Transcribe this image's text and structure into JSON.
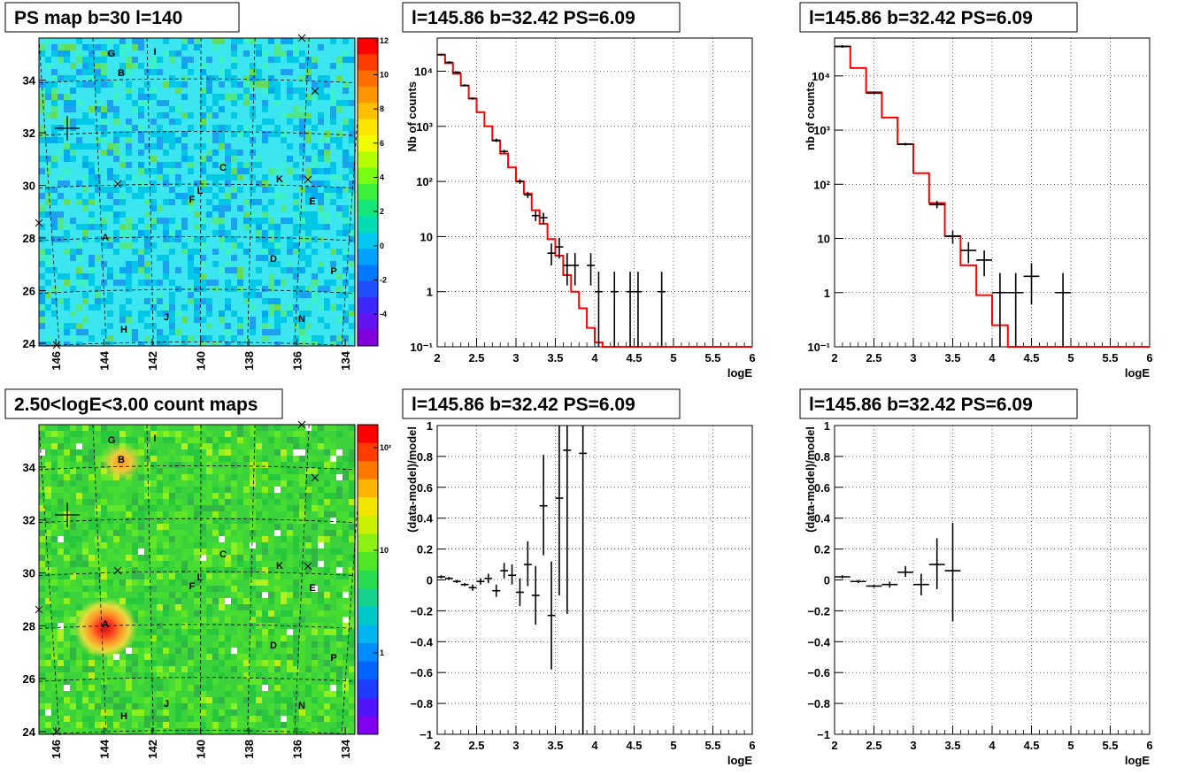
{
  "panels": {
    "ps_map": {
      "title": "PS map b=30 l=140"
    },
    "count_map": {
      "title": "2.50<logE<3.00 count maps"
    },
    "spec1": {
      "title": "l=145.86 b=32.42 PS=6.09",
      "ylabel": "Nb of counts",
      "xlabel": "logE"
    },
    "spec2": {
      "title": "l=145.86 b=32.42 PS=6.09",
      "ylabel": "nb of counts",
      "xlabel": "logE"
    },
    "res1": {
      "title": "l=145.86 b=32.42 PS=6.09",
      "ylabel": "(data-model)/model",
      "xlabel": "logE"
    },
    "res2": {
      "title": "l=145.86 b=32.42 PS=6.09",
      "ylabel": "(data-model)/model",
      "xlabel": "logE"
    }
  },
  "colors": {
    "model": "#ff0000",
    "data": "#000000",
    "grid": "#000000",
    "frame": "#000000"
  },
  "maps": {
    "lon_ticks": [
      "146",
      "144",
      "142",
      "140",
      "138",
      "136",
      "134"
    ],
    "lat_ticks": [
      "24",
      "26",
      "28",
      "30",
      "32",
      "34"
    ],
    "sources": [
      "G",
      "I",
      "B",
      "C",
      "K",
      "L",
      "F",
      "E",
      "A",
      "D",
      "P",
      "J",
      "H",
      "N"
    ],
    "ps_colorbar_labels": [
      "12",
      "10",
      "8",
      "6",
      "4",
      "2",
      "0",
      "-2",
      "-4"
    ],
    "count_colorbar_labels": [
      "10²",
      "10",
      "1"
    ]
  },
  "chart_data": [
    {
      "type": "heatmap",
      "title": "PS map b=30 l=140",
      "x_range": [
        146.7,
        133.6
      ],
      "y_range": [
        23.9,
        35.6
      ],
      "x_ticks": [
        146,
        144,
        142,
        140,
        138,
        136,
        134
      ],
      "y_ticks": [
        24,
        26,
        28,
        30,
        32,
        34
      ],
      "z_range": [
        -5,
        12
      ],
      "sources": [
        "G",
        "I",
        "B",
        "C",
        "K",
        "L",
        "F",
        "E",
        "A",
        "D",
        "P",
        "J",
        "H",
        "N"
      ]
    },
    {
      "type": "heatmap",
      "title": "2.50<logE<3.00 count maps",
      "x_range": [
        146.7,
        133.6
      ],
      "y_range": [
        23.9,
        35.6
      ],
      "x_ticks": [
        146,
        144,
        142,
        140,
        138,
        136,
        134
      ],
      "y_ticks": [
        24,
        26,
        28,
        30,
        32,
        34
      ],
      "z_scale": "log",
      "z_range": [
        0.3,
        200
      ],
      "sources": [
        "G",
        "I",
        "B",
        "C",
        "K",
        "L",
        "F",
        "E",
        "A",
        "D",
        "P",
        "J",
        "H",
        "N"
      ]
    },
    {
      "type": "line",
      "title": "l=145.86 b=32.42 PS=6.09",
      "xlabel": "logE",
      "ylabel": "Nb of counts",
      "xlim": [
        2,
        6
      ],
      "ylim": [
        0.1,
        40000
      ],
      "yscale": "log",
      "grid": true,
      "x_ticks": [
        "2",
        "2.5",
        "3",
        "3.5",
        "4",
        "4.5",
        "5",
        "5.5",
        "6"
      ],
      "y_ticks": [
        {
          "v": 0.1,
          "label": "10⁻¹"
        },
        {
          "v": 1,
          "label": "1"
        },
        {
          "v": 10,
          "label": "10"
        },
        {
          "v": 100,
          "label": "10²"
        },
        {
          "v": 1000,
          "label": "10³"
        },
        {
          "v": 10000,
          "label": "10⁴"
        }
      ],
      "model_step": {
        "edges": [
          2,
          2.1,
          2.2,
          2.3,
          2.4,
          2.5,
          2.6,
          2.7,
          2.8,
          2.9,
          3.0,
          3.1,
          3.2,
          3.3,
          3.4,
          3.5,
          3.6,
          3.7,
          3.8,
          3.9,
          4.0,
          4.1,
          4.2,
          6.0
        ],
        "values": [
          20000,
          14000,
          9000,
          5500,
          3200,
          1800,
          1000,
          550,
          320,
          180,
          100,
          60,
          30,
          17,
          9,
          4.5,
          2.0,
          1.0,
          0.5,
          0.22,
          0.12,
          0.1,
          0.1
        ]
      },
      "data": [
        {
          "x": 2.05,
          "y": 20000,
          "lo": 19000,
          "hi": 21000,
          "xe": 0.05
        },
        {
          "x": 2.15,
          "y": 14500,
          "lo": 13800,
          "hi": 15200,
          "xe": 0.05
        },
        {
          "x": 2.25,
          "y": 9500,
          "lo": 9000,
          "hi": 10000,
          "xe": 0.05
        },
        {
          "x": 2.35,
          "y": 5500,
          "lo": 5300,
          "hi": 5800,
          "xe": 0.05
        },
        {
          "x": 2.45,
          "y": 3200,
          "lo": 3050,
          "hi": 3350,
          "xe": 0.05
        },
        {
          "x": 2.75,
          "y": 560,
          "lo": 520,
          "hi": 600,
          "xe": 0.05
        },
        {
          "x": 2.85,
          "y": 350,
          "lo": 330,
          "hi": 375,
          "xe": 0.05
        },
        {
          "x": 3.05,
          "y": 100,
          "lo": 90,
          "hi": 110,
          "xe": 0.05
        },
        {
          "x": 3.15,
          "y": 57,
          "lo": 50,
          "hi": 65,
          "xe": 0.05
        },
        {
          "x": 3.25,
          "y": 24,
          "lo": 19,
          "hi": 29,
          "xe": 0.05
        },
        {
          "x": 3.35,
          "y": 22,
          "lo": 17,
          "hi": 27,
          "xe": 0.05
        },
        {
          "x": 3.45,
          "y": 5,
          "lo": 3,
          "hi": 7.5,
          "xe": 0.05
        },
        {
          "x": 3.55,
          "y": 6.5,
          "lo": 4,
          "hi": 9.5,
          "xe": 0.05
        },
        {
          "x": 3.65,
          "y": 3,
          "lo": 1.3,
          "hi": 5,
          "xe": 0.05
        },
        {
          "x": 3.75,
          "y": 3,
          "lo": 1.3,
          "hi": 5,
          "xe": 0.05
        },
        {
          "x": 3.95,
          "y": 3,
          "lo": 1.3,
          "hi": 5,
          "xe": 0.05
        },
        {
          "x": 4.05,
          "y": 1,
          "lo": 0.1,
          "hi": 2.3,
          "xe": 0.05
        },
        {
          "x": 4.25,
          "y": 1,
          "lo": 0.1,
          "hi": 2.3,
          "xe": 0.05
        },
        {
          "x": 4.45,
          "y": 1,
          "lo": 0.1,
          "hi": 2.3,
          "xe": 0.05
        },
        {
          "x": 4.55,
          "y": 1,
          "lo": 0.1,
          "hi": 2.3,
          "xe": 0.05
        },
        {
          "x": 4.85,
          "y": 1,
          "lo": 0.1,
          "hi": 2.3,
          "xe": 0.05
        }
      ]
    },
    {
      "type": "line",
      "title": "l=145.86 b=32.42 PS=6.09",
      "xlabel": "logE",
      "ylabel": "nb of counts",
      "xlim": [
        2,
        6
      ],
      "ylim": [
        0.1,
        50000
      ],
      "yscale": "log",
      "grid": true,
      "x_ticks": [
        "2",
        "2.5",
        "3",
        "3.5",
        "4",
        "4.5",
        "5",
        "5.5",
        "6"
      ],
      "y_ticks": [
        {
          "v": 0.1,
          "label": "10⁻¹"
        },
        {
          "v": 1,
          "label": "1"
        },
        {
          "v": 10,
          "label": "10"
        },
        {
          "v": 100,
          "label": "10²"
        },
        {
          "v": 1000,
          "label": "10³"
        },
        {
          "v": 10000,
          "label": "10⁴"
        }
      ],
      "model_step": {
        "edges": [
          2,
          2.2,
          2.4,
          2.6,
          2.8,
          3.0,
          3.2,
          3.4,
          3.6,
          3.8,
          4.0,
          4.2,
          6.0
        ],
        "values": [
          35000,
          14000,
          5000,
          1700,
          550,
          160,
          45,
          11,
          3.2,
          0.9,
          0.25,
          0.1
        ]
      },
      "data": [
        {
          "x": 2.1,
          "y": 35000,
          "lo": 33000,
          "hi": 37000,
          "xe": 0.1
        },
        {
          "x": 2.5,
          "y": 4800,
          "lo": 4600,
          "hi": 5100,
          "xe": 0.1
        },
        {
          "x": 2.9,
          "y": 550,
          "lo": 520,
          "hi": 580,
          "xe": 0.1
        },
        {
          "x": 3.3,
          "y": 42,
          "lo": 36,
          "hi": 49,
          "xe": 0.1
        },
        {
          "x": 3.5,
          "y": 11,
          "lo": 8,
          "hi": 14,
          "xe": 0.1
        },
        {
          "x": 3.7,
          "y": 6,
          "lo": 3.5,
          "hi": 8.5,
          "xe": 0.1
        },
        {
          "x": 3.9,
          "y": 4,
          "lo": 2,
          "hi": 6,
          "xe": 0.1
        },
        {
          "x": 4.1,
          "y": 1,
          "lo": 0.1,
          "hi": 2.3,
          "xe": 0.1
        },
        {
          "x": 4.3,
          "y": 1,
          "lo": 0.1,
          "hi": 2.3,
          "xe": 0.1
        },
        {
          "x": 4.5,
          "y": 2,
          "lo": 0.6,
          "hi": 3.5,
          "xe": 0.1
        },
        {
          "x": 4.9,
          "y": 1,
          "lo": 0.1,
          "hi": 2.3,
          "xe": 0.1
        }
      ]
    },
    {
      "type": "scatter",
      "title": "l=145.86 b=32.42 PS=6.09",
      "xlabel": "logE",
      "ylabel": "(data-model)/model",
      "xlim": [
        2,
        6
      ],
      "ylim": [
        -1,
        1
      ],
      "grid": true,
      "x_ticks": [
        "2",
        "2.5",
        "3",
        "3.5",
        "4",
        "4.5",
        "5",
        "5.5",
        "6"
      ],
      "y_ticks": [
        {
          "v": -1,
          "label": "−1"
        },
        {
          "v": -0.8,
          "label": "−0.8"
        },
        {
          "v": -0.6,
          "label": "−0.6"
        },
        {
          "v": -0.4,
          "label": "−0.4"
        },
        {
          "v": -0.2,
          "label": "−0.2"
        },
        {
          "v": 0,
          "label": "0"
        },
        {
          "v": 0.2,
          "label": "0.2"
        },
        {
          "v": 0.4,
          "label": "0.4"
        },
        {
          "v": 0.6,
          "label": "0.6"
        },
        {
          "v": 0.8,
          "label": "0.8"
        },
        {
          "v": 1,
          "label": "1"
        }
      ],
      "data": [
        {
          "x": 2.05,
          "y": 0.02,
          "lo": 0.01,
          "hi": 0.03,
          "xe": 0.05
        },
        {
          "x": 2.15,
          "y": 0.01,
          "lo": 0.0,
          "hi": 0.02,
          "xe": 0.05
        },
        {
          "x": 2.25,
          "y": -0.01,
          "lo": -0.02,
          "hi": 0.0,
          "xe": 0.05
        },
        {
          "x": 2.35,
          "y": -0.03,
          "lo": -0.04,
          "hi": -0.02,
          "xe": 0.05
        },
        {
          "x": 2.45,
          "y": -0.05,
          "lo": -0.07,
          "hi": -0.03,
          "xe": 0.05
        },
        {
          "x": 2.55,
          "y": -0.01,
          "lo": -0.03,
          "hi": 0.01,
          "xe": 0.05
        },
        {
          "x": 2.65,
          "y": 0.01,
          "lo": -0.02,
          "hi": 0.04,
          "xe": 0.05
        },
        {
          "x": 2.75,
          "y": -0.07,
          "lo": -0.11,
          "hi": -0.03,
          "xe": 0.05
        },
        {
          "x": 2.85,
          "y": 0.06,
          "lo": 0.01,
          "hi": 0.11,
          "xe": 0.05
        },
        {
          "x": 2.95,
          "y": 0.03,
          "lo": -0.03,
          "hi": 0.1,
          "xe": 0.05
        },
        {
          "x": 3.05,
          "y": -0.08,
          "lo": -0.17,
          "hi": 0.01,
          "xe": 0.05
        },
        {
          "x": 3.15,
          "y": 0.1,
          "lo": -0.04,
          "hi": 0.25,
          "xe": 0.05
        },
        {
          "x": 3.25,
          "y": -0.1,
          "lo": -0.29,
          "hi": 0.09,
          "xe": 0.05
        },
        {
          "x": 3.35,
          "y": 0.48,
          "lo": 0.16,
          "hi": 0.81,
          "xe": 0.05
        },
        {
          "x": 3.45,
          "y": -0.23,
          "lo": -0.58,
          "hi": 0.12,
          "xe": 0.05
        },
        {
          "x": 3.55,
          "y": 0.53,
          "lo": -0.1,
          "hi": 1.0,
          "xe": 0.05
        },
        {
          "x": 3.65,
          "y": 0.84,
          "lo": -0.22,
          "hi": 1.0,
          "xe": 0.05
        },
        {
          "x": 3.85,
          "y": 0.82,
          "lo": -1.0,
          "hi": 1.0,
          "xe": 0.05
        }
      ]
    },
    {
      "type": "scatter",
      "title": "l=145.86 b=32.42 PS=6.09",
      "xlabel": "logE",
      "ylabel": "(data-model)/model",
      "xlim": [
        2,
        6
      ],
      "ylim": [
        -1,
        1
      ],
      "grid": true,
      "x_ticks": [
        "2",
        "2.5",
        "3",
        "3.5",
        "4",
        "4.5",
        "5",
        "5.5",
        "6"
      ],
      "y_ticks": [
        {
          "v": -1,
          "label": "−1"
        },
        {
          "v": -0.8,
          "label": "−0.8"
        },
        {
          "v": -0.6,
          "label": "−0.6"
        },
        {
          "v": -0.4,
          "label": "−0.4"
        },
        {
          "v": -0.2,
          "label": "−0.2"
        },
        {
          "v": 0,
          "label": "0"
        },
        {
          "v": 0.2,
          "label": "0.2"
        },
        {
          "v": 0.4,
          "label": "0.4"
        },
        {
          "v": 0.6,
          "label": "0.6"
        },
        {
          "v": 0.8,
          "label": "0.8"
        },
        {
          "v": 1,
          "label": "1"
        }
      ],
      "data": [
        {
          "x": 2.1,
          "y": 0.02,
          "lo": 0.01,
          "hi": 0.03,
          "xe": 0.1
        },
        {
          "x": 2.3,
          "y": -0.01,
          "lo": -0.02,
          "hi": 0.0,
          "xe": 0.1
        },
        {
          "x": 2.5,
          "y": -0.04,
          "lo": -0.05,
          "hi": -0.03,
          "xe": 0.1
        },
        {
          "x": 2.7,
          "y": -0.03,
          "lo": -0.05,
          "hi": -0.01,
          "xe": 0.1
        },
        {
          "x": 2.9,
          "y": 0.05,
          "lo": 0.02,
          "hi": 0.09,
          "xe": 0.1
        },
        {
          "x": 3.1,
          "y": -0.03,
          "lo": -0.1,
          "hi": 0.04,
          "xe": 0.1
        },
        {
          "x": 3.3,
          "y": 0.1,
          "lo": -0.06,
          "hi": 0.27,
          "xe": 0.1
        },
        {
          "x": 3.5,
          "y": 0.06,
          "lo": -0.27,
          "hi": 0.37,
          "xe": 0.1
        }
      ]
    }
  ]
}
